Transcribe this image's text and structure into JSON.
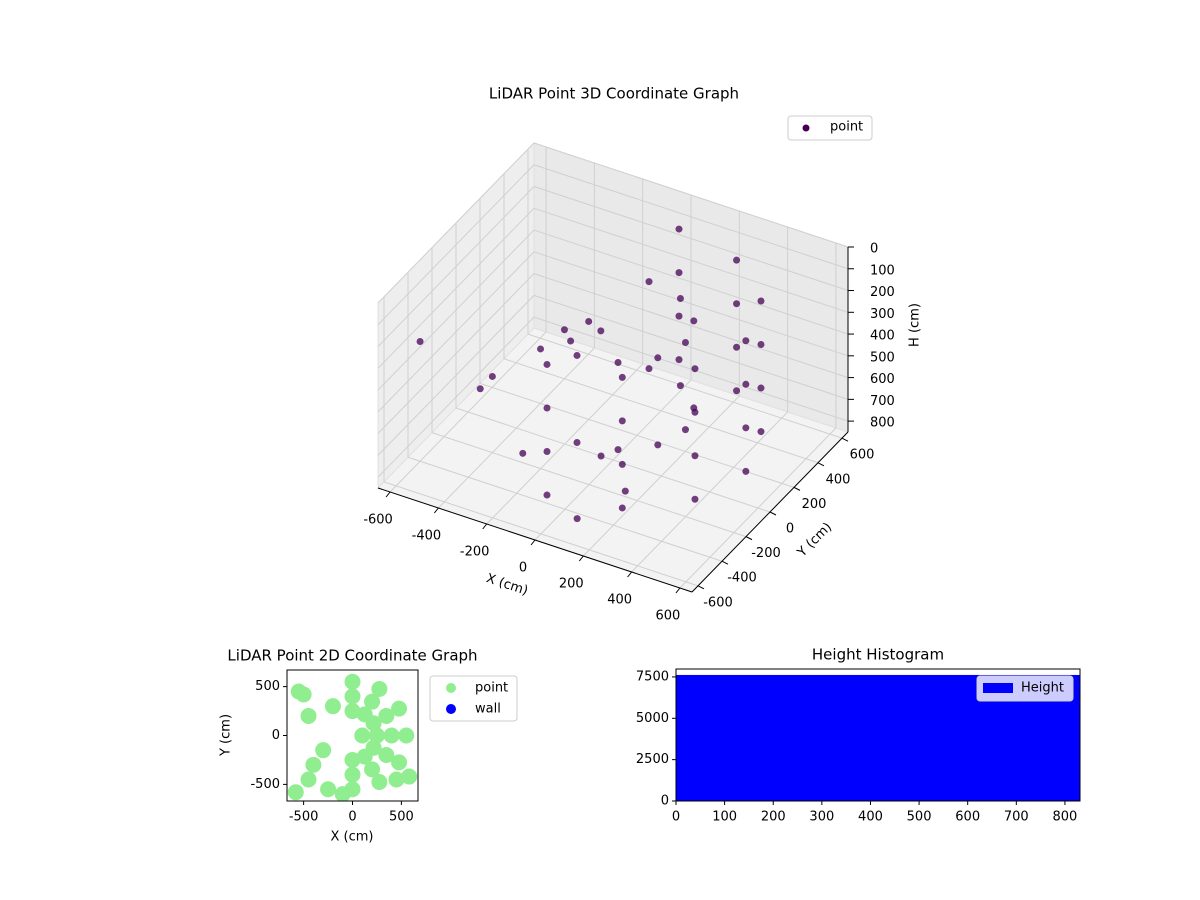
{
  "chart_data": [
    {
      "type": "scatter3d",
      "title": "LiDAR Point 3D Coordinate Graph",
      "xlabel": "X (cm)",
      "ylabel": "Y (cm)",
      "zlabel": "H (cm)",
      "xlim": [
        -650,
        650
      ],
      "ylim": [
        -650,
        650
      ],
      "zlim": [
        0,
        850
      ],
      "z_inverted": true,
      "xticks": [
        -600,
        -400,
        -200,
        0,
        200,
        400,
        600
      ],
      "yticks": [
        -600,
        -400,
        -200,
        0,
        200,
        400,
        600
      ],
      "zticks": [
        0,
        100,
        200,
        300,
        400,
        500,
        600,
        700,
        800
      ],
      "grid": true,
      "legend": "upper right",
      "series": [
        {
          "name": "point",
          "color": "#440154",
          "x": [
            0,
            275,
            476,
            550,
            476,
            275,
            0,
            0,
            275,
            476,
            550,
            476,
            275,
            0,
            0,
            275,
            476,
            550,
            476,
            275,
            0,
            0,
            275,
            476,
            550,
            476,
            275,
            0,
            0,
            150,
            260,
            300,
            260,
            150,
            0,
            0,
            150,
            260,
            300,
            260,
            150,
            0,
            -600,
            -500,
            -400,
            -300,
            -200,
            -100,
            100,
            200,
            -150,
            -350,
            -250,
            50
          ],
          "y": [
            -550,
            -476,
            -275,
            0,
            275,
            476,
            550,
            -550,
            -476,
            -275,
            0,
            275,
            476,
            550,
            -550,
            -476,
            -275,
            0,
            275,
            476,
            550,
            -550,
            -476,
            -275,
            0,
            275,
            476,
            550,
            -300,
            -260,
            -150,
            0,
            150,
            260,
            300,
            -300,
            -260,
            -150,
            0,
            150,
            260,
            300,
            -400,
            -100,
            -200,
            0,
            200,
            100,
            -500,
            -300,
            -450,
            300,
            150,
            -200
          ],
          "z": [
            100,
            100,
            100,
            100,
            100,
            100,
            100,
            300,
            300,
            300,
            300,
            300,
            300,
            300,
            500,
            500,
            500,
            500,
            500,
            500,
            500,
            700,
            700,
            700,
            700,
            700,
            700,
            700,
            200,
            200,
            200,
            200,
            200,
            200,
            200,
            600,
            600,
            600,
            600,
            600,
            600,
            600,
            300,
            650,
            500,
            450,
            400,
            350,
            800,
            750,
            620,
            550,
            480,
            700
          ]
        }
      ]
    },
    {
      "type": "scatter",
      "title": "LiDAR Point 2D Coordinate Graph",
      "xlabel": "X (cm)",
      "ylabel": "Y (cm)",
      "xlim": [
        -670,
        670
      ],
      "ylim": [
        -670,
        670
      ],
      "xticks": [
        -500,
        0,
        500
      ],
      "yticks": [
        -500,
        0,
        500
      ],
      "legend": "outside right",
      "series": [
        {
          "name": "point",
          "color": "#90ee90",
          "x": [
            0,
            275,
            476,
            550,
            476,
            275,
            0,
            0,
            200,
            346,
            400,
            346,
            200,
            0,
            0,
            125,
            216,
            250,
            216,
            125,
            0,
            100,
            -580,
            -500,
            -400,
            -200,
            580,
            -250,
            -450,
            -300,
            -550,
            -100,
            450,
            -450
          ],
          "y": [
            -550,
            -476,
            -275,
            0,
            275,
            476,
            550,
            -400,
            -346,
            -200,
            0,
            200,
            346,
            400,
            -250,
            -216,
            -125,
            0,
            125,
            216,
            250,
            0,
            -580,
            420,
            -300,
            300,
            -420,
            -550,
            200,
            -150,
            450,
            -600,
            -450,
            -450
          ]
        },
        {
          "name": "wall",
          "color": "#0000ff",
          "x": [],
          "y": []
        }
      ]
    },
    {
      "type": "histogram",
      "title": "Height Histogram",
      "xlim": [
        0,
        831
      ],
      "ylim": [
        0,
        7980
      ],
      "xticks": [
        0,
        100,
        200,
        300,
        400,
        500,
        600,
        700,
        800
      ],
      "yticks": [
        0,
        2500,
        5000,
        7500
      ],
      "legend": "upper right",
      "series": [
        {
          "name": "Height",
          "color": "#0000ff",
          "bins": [
            0,
            831
          ],
          "counts": [
            7620
          ]
        }
      ]
    }
  ]
}
